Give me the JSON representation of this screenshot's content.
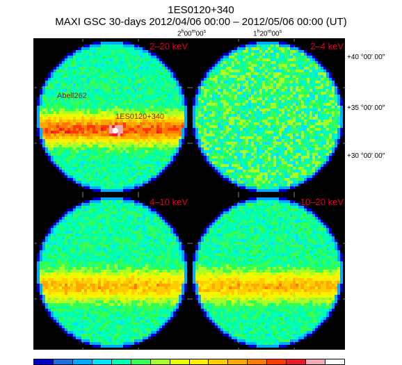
{
  "title": {
    "line1": "1ES0120+340",
    "line2": "MAXI GSC 30-days 2012/04/06 00:00 – 2012/05/06 00:00 (UT)"
  },
  "axes": {
    "ra": [
      {
        "h": "2",
        "m": "00",
        "s": "00"
      },
      {
        "h": "1",
        "m": "20",
        "s": "00"
      }
    ],
    "dec": [
      "+40 °00′ 00″",
      "+35 °00′ 00″",
      "+30 °00′ 00″"
    ]
  },
  "panels": [
    {
      "band": "2–20 keV",
      "sources": [
        "Abell262",
        "1ES0120+340"
      ],
      "plane": "strong"
    },
    {
      "band": "2–4 keV",
      "sources": [],
      "plane": "none"
    },
    {
      "band": "4–10 keV",
      "sources": [],
      "plane": "medium"
    },
    {
      "band": "10–20 keV",
      "sources": [],
      "plane": "medium"
    }
  ],
  "colors": {
    "background": "#000000",
    "band_label": "#e8001e",
    "source_label": "#8b1a1a",
    "scale": [
      "#0000cd",
      "#1e6fe0",
      "#00aaff",
      "#00e5ff",
      "#00ffb0",
      "#33ff55",
      "#a5ff2a",
      "#e6ff00",
      "#ffee00",
      "#ffcc00",
      "#ffa600",
      "#ff7a00",
      "#ff3a00",
      "#ee1a2a",
      "#f2aab5",
      "#ffffff"
    ]
  }
}
